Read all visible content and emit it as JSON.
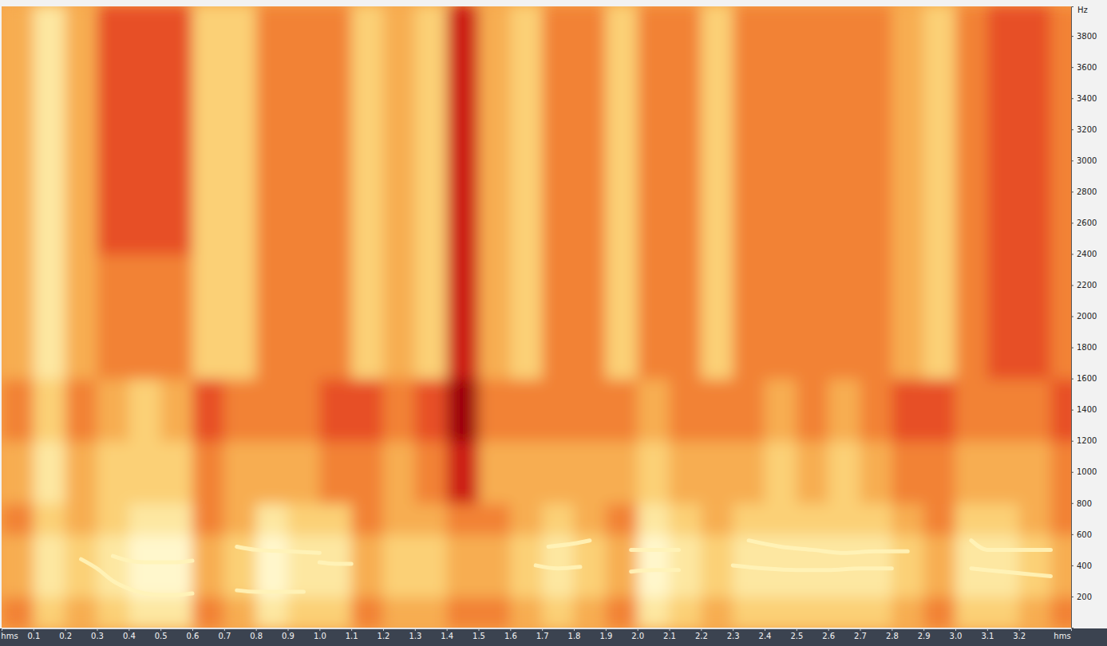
{
  "chart_data": {
    "type": "heatmap",
    "x_label": "hms",
    "y_label": "Hz",
    "xlim": [
      0,
      3.364
    ],
    "ylim": [
      0,
      3990
    ],
    "xticks": [
      0.1,
      0.2,
      0.3,
      0.4,
      0.5,
      0.6,
      0.7,
      0.8,
      0.9,
      {
        "value": 1,
        "label": "1.0"
      },
      1.1,
      1.2,
      1.3,
      1.4,
      1.5,
      1.6,
      1.7,
      1.8,
      1.9,
      {
        "value": 2,
        "label": "2.0"
      },
      2.1,
      2.2,
      2.3,
      2.4,
      2.5,
      2.6,
      2.7,
      2.8,
      2.9,
      {
        "value": 3,
        "label": "3.0"
      },
      3.1,
      3.2
    ],
    "yticks": [
      200,
      400,
      600,
      800,
      1000,
      1200,
      1400,
      1600,
      1800,
      2000,
      2200,
      2400,
      2600,
      2800,
      3000,
      3200,
      3400,
      3600,
      3800
    ],
    "x": [
      0.05,
      0.15,
      0.25,
      0.35,
      0.45,
      0.55,
      0.65,
      0.75,
      0.85,
      0.95,
      1.05,
      1.15,
      1.25,
      1.35,
      1.45,
      1.55,
      1.65,
      1.75,
      1.85,
      1.95,
      2.05,
      2.15,
      2.25,
      2.35,
      2.45,
      2.55,
      2.65,
      2.75,
      2.85,
      2.95,
      3.05,
      3.15,
      3.25,
      3.35
    ],
    "y": [
      100,
      300,
      500,
      700,
      900,
      1100,
      1300,
      1500,
      1700,
      1900,
      2100,
      2300,
      2500,
      2700,
      2900,
      3100,
      3300,
      3500,
      3700,
      3900
    ],
    "cells": [
      [
        4,
        6,
        5,
        6,
        7,
        7,
        4,
        5,
        7,
        6,
        6,
        4,
        5,
        5,
        4,
        4,
        5,
        6,
        5,
        4,
        7,
        6,
        5,
        6,
        6,
        6,
        6,
        6,
        5,
        4,
        6,
        6,
        5,
        4
      ],
      [
        5,
        7,
        6,
        7,
        8,
        8,
        5,
        6,
        8,
        7,
        7,
        5,
        6,
        6,
        5,
        5,
        6,
        7,
        6,
        5,
        8,
        7,
        6,
        7,
        7,
        7,
        7,
        7,
        6,
        5,
        7,
        7,
        6,
        5
      ],
      [
        5,
        7,
        6,
        7,
        8,
        8,
        5,
        6,
        8,
        7,
        7,
        5,
        6,
        6,
        5,
        5,
        6,
        7,
        6,
        5,
        8,
        7,
        6,
        7,
        7,
        7,
        7,
        7,
        6,
        5,
        7,
        7,
        6,
        5
      ],
      [
        4,
        6,
        5,
        6,
        7,
        7,
        4,
        5,
        7,
        6,
        6,
        4,
        5,
        5,
        4,
        4,
        5,
        6,
        5,
        4,
        7,
        6,
        5,
        6,
        6,
        6,
        6,
        6,
        5,
        4,
        6,
        6,
        5,
        4
      ],
      [
        5,
        7,
        5,
        6,
        6,
        6,
        4,
        5,
        5,
        5,
        4,
        4,
        5,
        4,
        2,
        5,
        5,
        5,
        5,
        5,
        6,
        5,
        5,
        5,
        6,
        5,
        6,
        5,
        4,
        4,
        5,
        5,
        5,
        4
      ],
      [
        5,
        7,
        5,
        6,
        6,
        6,
        4,
        5,
        5,
        5,
        4,
        4,
        5,
        4,
        2,
        5,
        5,
        5,
        5,
        5,
        6,
        5,
        5,
        5,
        6,
        5,
        6,
        5,
        4,
        4,
        5,
        5,
        5,
        4
      ],
      [
        4,
        6,
        4,
        5,
        6,
        5,
        3,
        4,
        4,
        4,
        3,
        3,
        4,
        3,
        1,
        4,
        4,
        4,
        4,
        4,
        5,
        4,
        4,
        4,
        5,
        4,
        5,
        4,
        3,
        3,
        4,
        4,
        4,
        3
      ],
      [
        4,
        6,
        4,
        5,
        6,
        5,
        3,
        4,
        4,
        4,
        3,
        3,
        4,
        3,
        1,
        4,
        4,
        4,
        4,
        4,
        5,
        4,
        4,
        4,
        5,
        4,
        5,
        4,
        3,
        3,
        4,
        4,
        4,
        3
      ],
      [
        5,
        7,
        5,
        4,
        4,
        4,
        6,
        6,
        4,
        4,
        4,
        6,
        5,
        6,
        2,
        5,
        6,
        4,
        4,
        6,
        4,
        4,
        6,
        4,
        4,
        4,
        4,
        4,
        5,
        6,
        4,
        3,
        3,
        4
      ],
      [
        5,
        7,
        5,
        4,
        4,
        4,
        6,
        6,
        4,
        4,
        4,
        6,
        5,
        6,
        2,
        5,
        6,
        4,
        4,
        6,
        4,
        4,
        6,
        4,
        4,
        4,
        4,
        4,
        5,
        6,
        4,
        3,
        3,
        4
      ],
      [
        5,
        7,
        5,
        4,
        4,
        4,
        6,
        6,
        4,
        4,
        4,
        6,
        5,
        6,
        2,
        5,
        6,
        4,
        4,
        6,
        4,
        4,
        6,
        4,
        4,
        4,
        4,
        4,
        5,
        6,
        4,
        3,
        3,
        4
      ],
      [
        5,
        7,
        5,
        4,
        4,
        4,
        6,
        6,
        4,
        4,
        4,
        6,
        5,
        6,
        2,
        5,
        6,
        4,
        4,
        6,
        4,
        4,
        6,
        4,
        4,
        4,
        4,
        4,
        5,
        6,
        4,
        3,
        3,
        4
      ],
      [
        5,
        7,
        5,
        3,
        3,
        3,
        6,
        6,
        4,
        4,
        4,
        6,
        5,
        6,
        2,
        5,
        6,
        4,
        4,
        6,
        4,
        4,
        6,
        4,
        4,
        4,
        4,
        4,
        5,
        6,
        4,
        3,
        3,
        4
      ],
      [
        5,
        7,
        5,
        3,
        3,
        3,
        6,
        6,
        4,
        4,
        4,
        6,
        5,
        6,
        2,
        5,
        6,
        4,
        4,
        6,
        4,
        4,
        6,
        4,
        4,
        4,
        4,
        4,
        5,
        6,
        4,
        3,
        3,
        4
      ],
      [
        5,
        7,
        5,
        3,
        3,
        3,
        6,
        6,
        4,
        4,
        4,
        6,
        5,
        6,
        2,
        5,
        6,
        4,
        4,
        6,
        4,
        4,
        6,
        4,
        4,
        4,
        4,
        4,
        5,
        6,
        4,
        3,
        3,
        4
      ],
      [
        5,
        7,
        5,
        3,
        3,
        3,
        6,
        6,
        4,
        4,
        4,
        6,
        5,
        6,
        2,
        5,
        6,
        4,
        4,
        6,
        4,
        4,
        6,
        4,
        4,
        4,
        4,
        4,
        5,
        6,
        4,
        3,
        3,
        4
      ],
      [
        5,
        7,
        5,
        3,
        3,
        3,
        6,
        6,
        4,
        4,
        4,
        6,
        5,
        6,
        2,
        5,
        6,
        4,
        4,
        6,
        4,
        4,
        6,
        4,
        4,
        4,
        4,
        4,
        5,
        6,
        4,
        3,
        3,
        4
      ],
      [
        5,
        7,
        5,
        3,
        3,
        3,
        6,
        6,
        4,
        4,
        4,
        6,
        5,
        6,
        2,
        5,
        6,
        4,
        4,
        6,
        4,
        4,
        6,
        4,
        4,
        4,
        4,
        4,
        5,
        6,
        4,
        3,
        3,
        4
      ],
      [
        5,
        7,
        5,
        3,
        3,
        3,
        6,
        6,
        4,
        4,
        4,
        6,
        5,
        6,
        2,
        5,
        6,
        4,
        4,
        6,
        4,
        4,
        6,
        4,
        4,
        4,
        4,
        4,
        5,
        6,
        4,
        3,
        3,
        4
      ],
      [
        5,
        7,
        5,
        3,
        3,
        3,
        6,
        6,
        4,
        4,
        4,
        6,
        5,
        6,
        2,
        5,
        6,
        4,
        4,
        6,
        4,
        4,
        6,
        4,
        4,
        4,
        4,
        4,
        5,
        6,
        4,
        3,
        3,
        4
      ]
    ],
    "color": "#fff3b8",
    "series": [
      {
        "type": "line",
        "x": [
          0.25,
          0.3,
          0.35,
          0.4,
          0.45,
          0.5,
          0.55,
          0.6
        ],
        "values": [
          440,
          380,
          300,
          250,
          220,
          210,
          210,
          220
        ]
      },
      {
        "type": "line",
        "x": [
          0.35,
          0.4,
          0.45,
          0.5,
          0.55,
          0.6
        ],
        "values": [
          460,
          430,
          420,
          420,
          420,
          430
        ]
      },
      {
        "type": "line",
        "x": [
          0.74,
          0.8,
          0.9,
          1.0
        ],
        "values": [
          520,
          500,
          490,
          480
        ]
      },
      {
        "type": "line",
        "x": [
          0.74,
          0.8,
          0.9,
          0.95
        ],
        "values": [
          240,
          230,
          230,
          230
        ]
      },
      {
        "type": "line",
        "x": [
          1.0,
          1.05,
          1.1
        ],
        "values": [
          420,
          410,
          410
        ]
      },
      {
        "type": "line",
        "x": [
          1.68,
          1.75,
          1.82
        ],
        "values": [
          400,
          380,
          390
        ]
      },
      {
        "type": "line",
        "x": [
          1.72,
          1.8,
          1.85
        ],
        "values": [
          520,
          540,
          560
        ]
      },
      {
        "type": "line",
        "x": [
          1.98,
          2.05,
          2.13
        ],
        "values": [
          500,
          500,
          500
        ]
      },
      {
        "type": "line",
        "x": [
          1.98,
          2.05,
          2.13
        ],
        "values": [
          360,
          370,
          370
        ]
      },
      {
        "type": "line",
        "x": [
          2.35,
          2.45,
          2.55,
          2.65,
          2.75,
          2.85
        ],
        "values": [
          560,
          520,
          500,
          480,
          490,
          490
        ]
      },
      {
        "type": "line",
        "x": [
          2.3,
          2.4,
          2.5,
          2.6,
          2.7,
          2.8
        ],
        "values": [
          400,
          380,
          370,
          370,
          380,
          380
        ]
      },
      {
        "type": "line",
        "x": [
          3.05,
          3.1,
          3.2,
          3.3
        ],
        "values": [
          560,
          500,
          500,
          500
        ]
      },
      {
        "type": "line",
        "x": [
          3.05,
          3.15,
          3.25,
          3.3
        ],
        "values": [
          380,
          360,
          340,
          330
        ]
      }
    ]
  }
}
